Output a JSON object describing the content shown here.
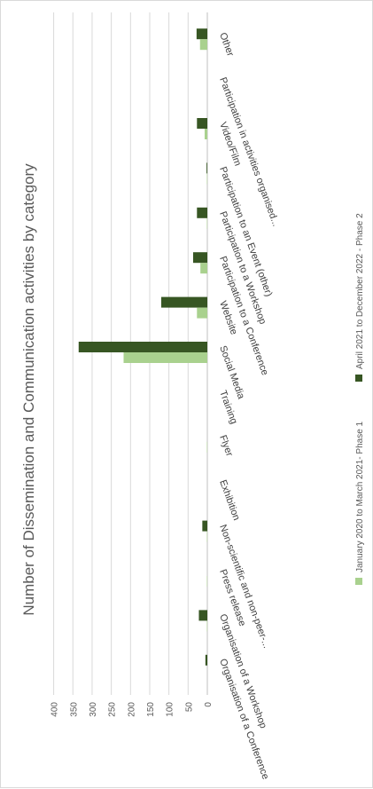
{
  "chart_data": {
    "type": "bar",
    "orientation": "horizontal",
    "title": "Number of Dissemination and Communication activities by category",
    "xlabel": "",
    "ylabel": "",
    "xlim": [
      0,
      400
    ],
    "ticks": [
      "0",
      "50",
      "100",
      "150",
      "200",
      "250",
      "300",
      "350",
      "400"
    ],
    "grid": true,
    "legend_position": "bottom",
    "categories": [
      "Organisation of a Conference",
      "Organisation of a Workshop",
      "Press release",
      "Non-scientific and non-peer-...",
      "Exhibition",
      "Flyer",
      "Training",
      "Social Media",
      "Website",
      "Participation to a Conference",
      "Participation to a Workshop",
      "Participation to an Event (other)",
      "Video/Film",
      "Participation in activities organised...",
      "Other"
    ],
    "series": [
      {
        "name": "January 2020 to March 2021- Phase 1",
        "color": "#a9d18e",
        "values": [
          0,
          1,
          1,
          1,
          0,
          1,
          0,
          218,
          27,
          18,
          1,
          1,
          7,
          0,
          19
        ]
      },
      {
        "name": "April 2021 to December 2022 - Phase 2",
        "color": "#375623",
        "values": [
          5,
          22,
          0,
          13,
          0,
          0,
          0,
          335,
          120,
          37,
          27,
          2,
          27,
          0,
          28
        ]
      }
    ]
  }
}
